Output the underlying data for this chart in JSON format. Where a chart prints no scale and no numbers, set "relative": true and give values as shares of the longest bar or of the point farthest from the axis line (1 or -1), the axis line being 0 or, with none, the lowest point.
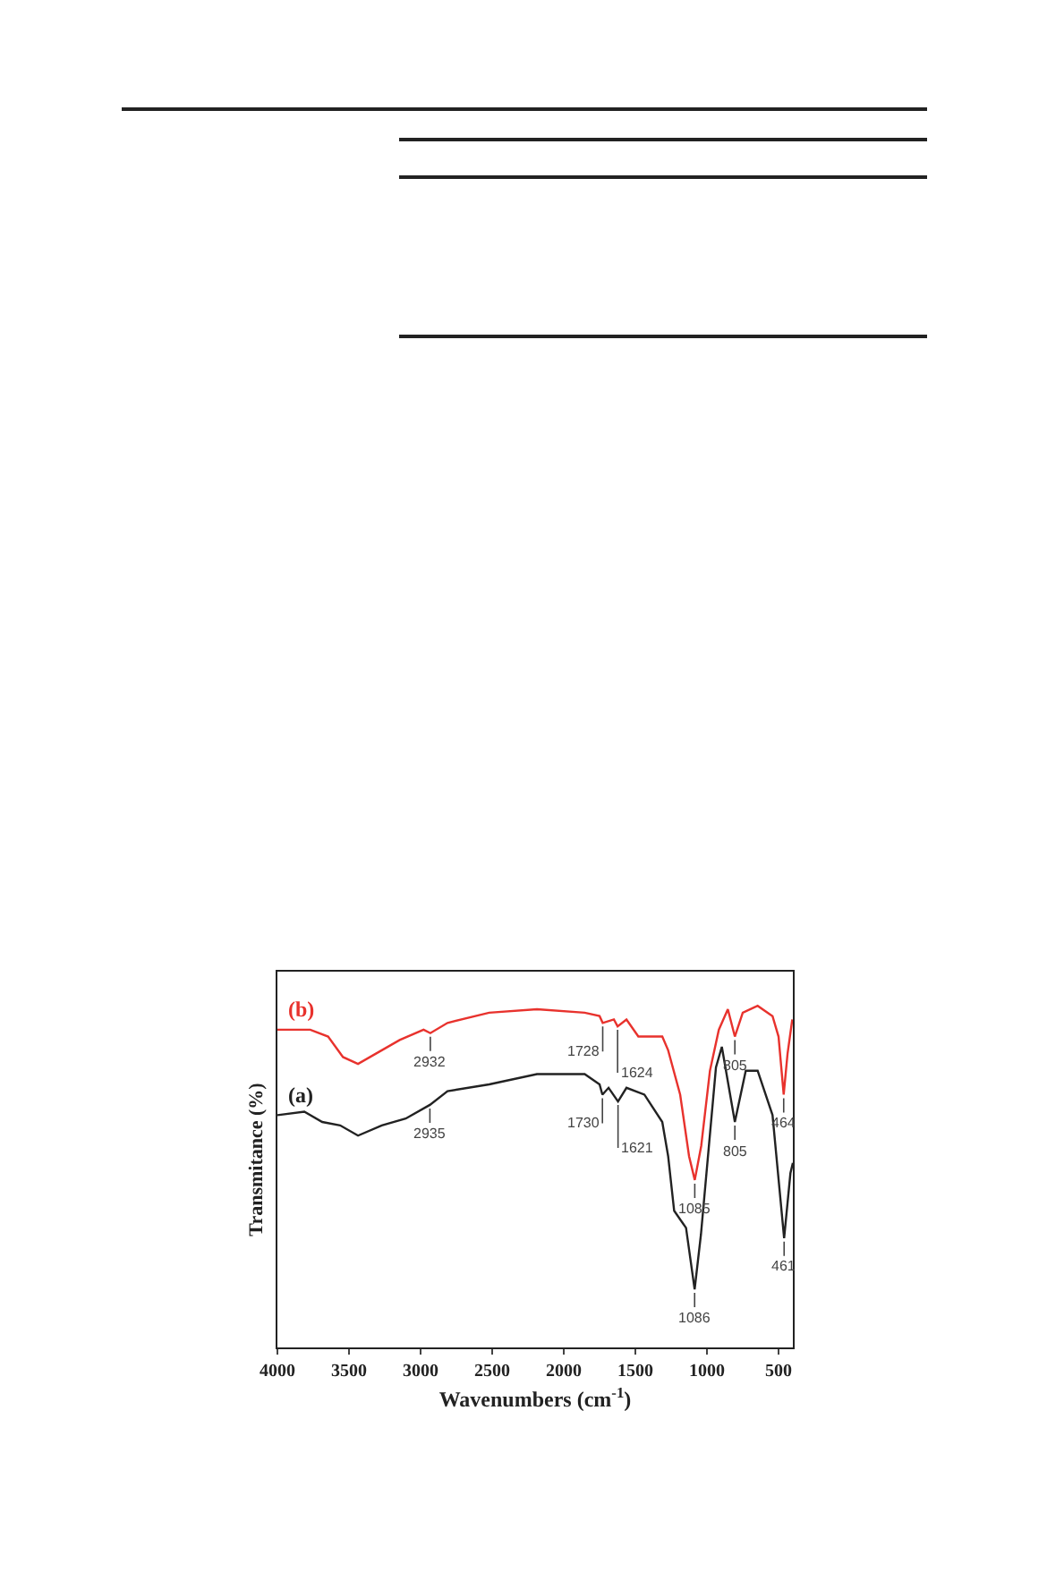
{
  "chart_data": {
    "type": "line",
    "relative": true,
    "xlabel": "Wavenumbers (cm$^{-1}$)",
    "ylabel": "Transmitance (%)",
    "xlim": [
      4000,
      400
    ],
    "xticks": [
      4000,
      3500,
      3000,
      2500,
      2000,
      1500,
      1000,
      500
    ],
    "legend": false,
    "grid": false,
    "series": [
      {
        "name": "(b)",
        "color": "#e8322d",
        "x": [
          4000,
          3771,
          3646,
          3542,
          3437,
          3312,
          3146,
          2979,
          2932,
          2812,
          2521,
          2187,
          1854,
          1750,
          1728,
          1650,
          1624,
          1562,
          1479,
          1312,
          1271,
          1187,
          1125,
          1085,
          1040,
          979,
          917,
          854,
          805,
          750,
          646,
          542,
          500,
          464,
          437,
          404
        ],
        "values": [
          0.93,
          0.93,
          0.91,
          0.85,
          0.83,
          0.86,
          0.9,
          0.93,
          0.92,
          0.95,
          0.98,
          0.99,
          0.98,
          0.97,
          0.95,
          0.96,
          0.94,
          0.96,
          0.91,
          0.91,
          0.87,
          0.74,
          0.56,
          0.49,
          0.59,
          0.81,
          0.93,
          0.99,
          0.91,
          0.98,
          1,
          0.97,
          0.91,
          0.74,
          0.86,
          0.96
        ]
      },
      {
        "name": "(a)",
        "color": "#222222",
        "x": [
          4000,
          3812,
          3687,
          3562,
          3437,
          3271,
          3104,
          2935,
          2812,
          2521,
          2187,
          1854,
          1750,
          1730,
          1687,
          1621,
          1562,
          1437,
          1312,
          1271,
          1229,
          1146,
          1086,
          1042,
          937,
          896,
          805,
          729,
          646,
          542,
          461,
          417,
          400
        ],
        "values": [
          0.68,
          0.69,
          0.66,
          0.65,
          0.62,
          0.65,
          0.67,
          0.71,
          0.75,
          0.77,
          0.8,
          0.8,
          0.77,
          0.74,
          0.76,
          0.72,
          0.76,
          0.74,
          0.66,
          0.56,
          0.4,
          0.35,
          0.17,
          0.33,
          0.82,
          0.88,
          0.66,
          0.81,
          0.81,
          0.68,
          0.32,
          0.51,
          0.54
        ]
      }
    ],
    "annotations": [
      {
        "text": "2932",
        "x": 2932,
        "y": 0.92
      },
      {
        "text": "1728",
        "x": 1728,
        "y": 0.95
      },
      {
        "text": "1624",
        "x": 1624,
        "y": 0.94
      },
      {
        "text": "1085",
        "x": 1085,
        "y": 0.49
      },
      {
        "text": "805",
        "x": 805,
        "y": 0.91
      },
      {
        "text": "464",
        "x": 464,
        "y": 0.74
      },
      {
        "text": "2935",
        "x": 2935,
        "y": 0.71
      },
      {
        "text": "1730",
        "x": 1730,
        "y": 0.74
      },
      {
        "text": "1621",
        "x": 1621,
        "y": 0.72
      },
      {
        "text": "1086",
        "x": 1086,
        "y": 0.17
      },
      {
        "text": "805",
        "x": 805,
        "y": 0.66
      },
      {
        "text": "461",
        "x": 461,
        "y": 0.32
      }
    ]
  }
}
